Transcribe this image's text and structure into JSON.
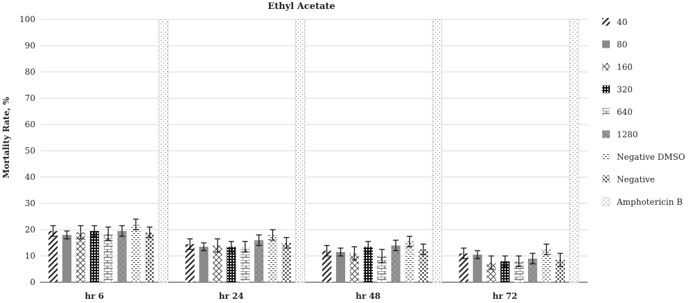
{
  "chart_data": {
    "type": "bar",
    "title": "Ethyl Acetate",
    "ylabel": "Mortality Rate, %",
    "xlabel": "",
    "ylim": [
      0,
      100
    ],
    "yticks": [
      0,
      10,
      20,
      30,
      40,
      50,
      60,
      70,
      80,
      90,
      100
    ],
    "grid": true,
    "legend_position": "right",
    "categories": [
      "hr 6",
      "hr 24",
      "hr 48",
      "hr 72"
    ],
    "series": [
      {
        "name": "40",
        "values": [
          19.5,
          14.5,
          12,
          11
        ],
        "errors": [
          2,
          2,
          2,
          2
        ]
      },
      {
        "name": "80",
        "values": [
          18,
          13.5,
          11.5,
          10.5
        ],
        "errors": [
          1.5,
          1.5,
          1.5,
          1.5
        ]
      },
      {
        "name": "160",
        "values": [
          19,
          14,
          11,
          7.5
        ],
        "errors": [
          2.5,
          2.5,
          2.5,
          2.5
        ]
      },
      {
        "name": "320",
        "values": [
          19.5,
          13.5,
          13.5,
          8
        ],
        "errors": [
          2,
          2,
          2,
          2
        ]
      },
      {
        "name": "640",
        "values": [
          18.5,
          13.5,
          10,
          8
        ],
        "errors": [
          2.5,
          2,
          2.5,
          2
        ]
      },
      {
        "name": "1280",
        "values": [
          19.5,
          16,
          14,
          9
        ],
        "errors": [
          2,
          2,
          2,
          2
        ]
      },
      {
        "name": "Negative DMSO",
        "values": [
          22,
          18,
          15.5,
          12.5
        ],
        "errors": [
          2,
          2,
          2,
          2
        ]
      },
      {
        "name": "Negative",
        "values": [
          19,
          15,
          12.5,
          8.5
        ],
        "errors": [
          2,
          2,
          2,
          2.5
        ]
      },
      {
        "name": "Amphotericin B",
        "values": [
          100,
          100,
          100,
          100
        ],
        "errors": [
          0,
          0,
          0,
          0
        ]
      }
    ]
  }
}
